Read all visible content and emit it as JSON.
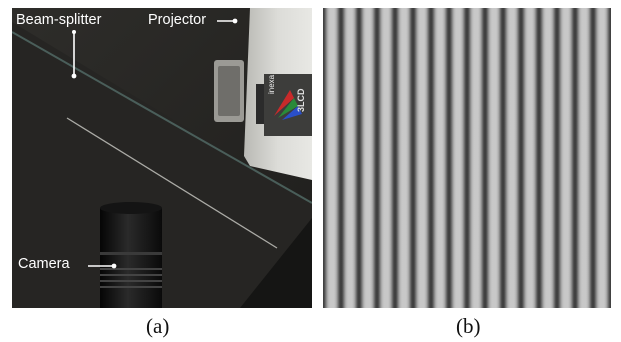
{
  "figure": {
    "panel_a": {
      "caption": "(a)",
      "labels": {
        "beam_splitter": "Beam-splitter",
        "projector": "Projector",
        "camera": "Camera"
      },
      "projector_brand": "inexa",
      "projector_model": "3LCD"
    },
    "panel_b": {
      "caption": "(b)",
      "fringe_count": 16,
      "fringe_colors": {
        "dark": "#3a3a3a",
        "light": "#c8c8c8"
      }
    }
  }
}
